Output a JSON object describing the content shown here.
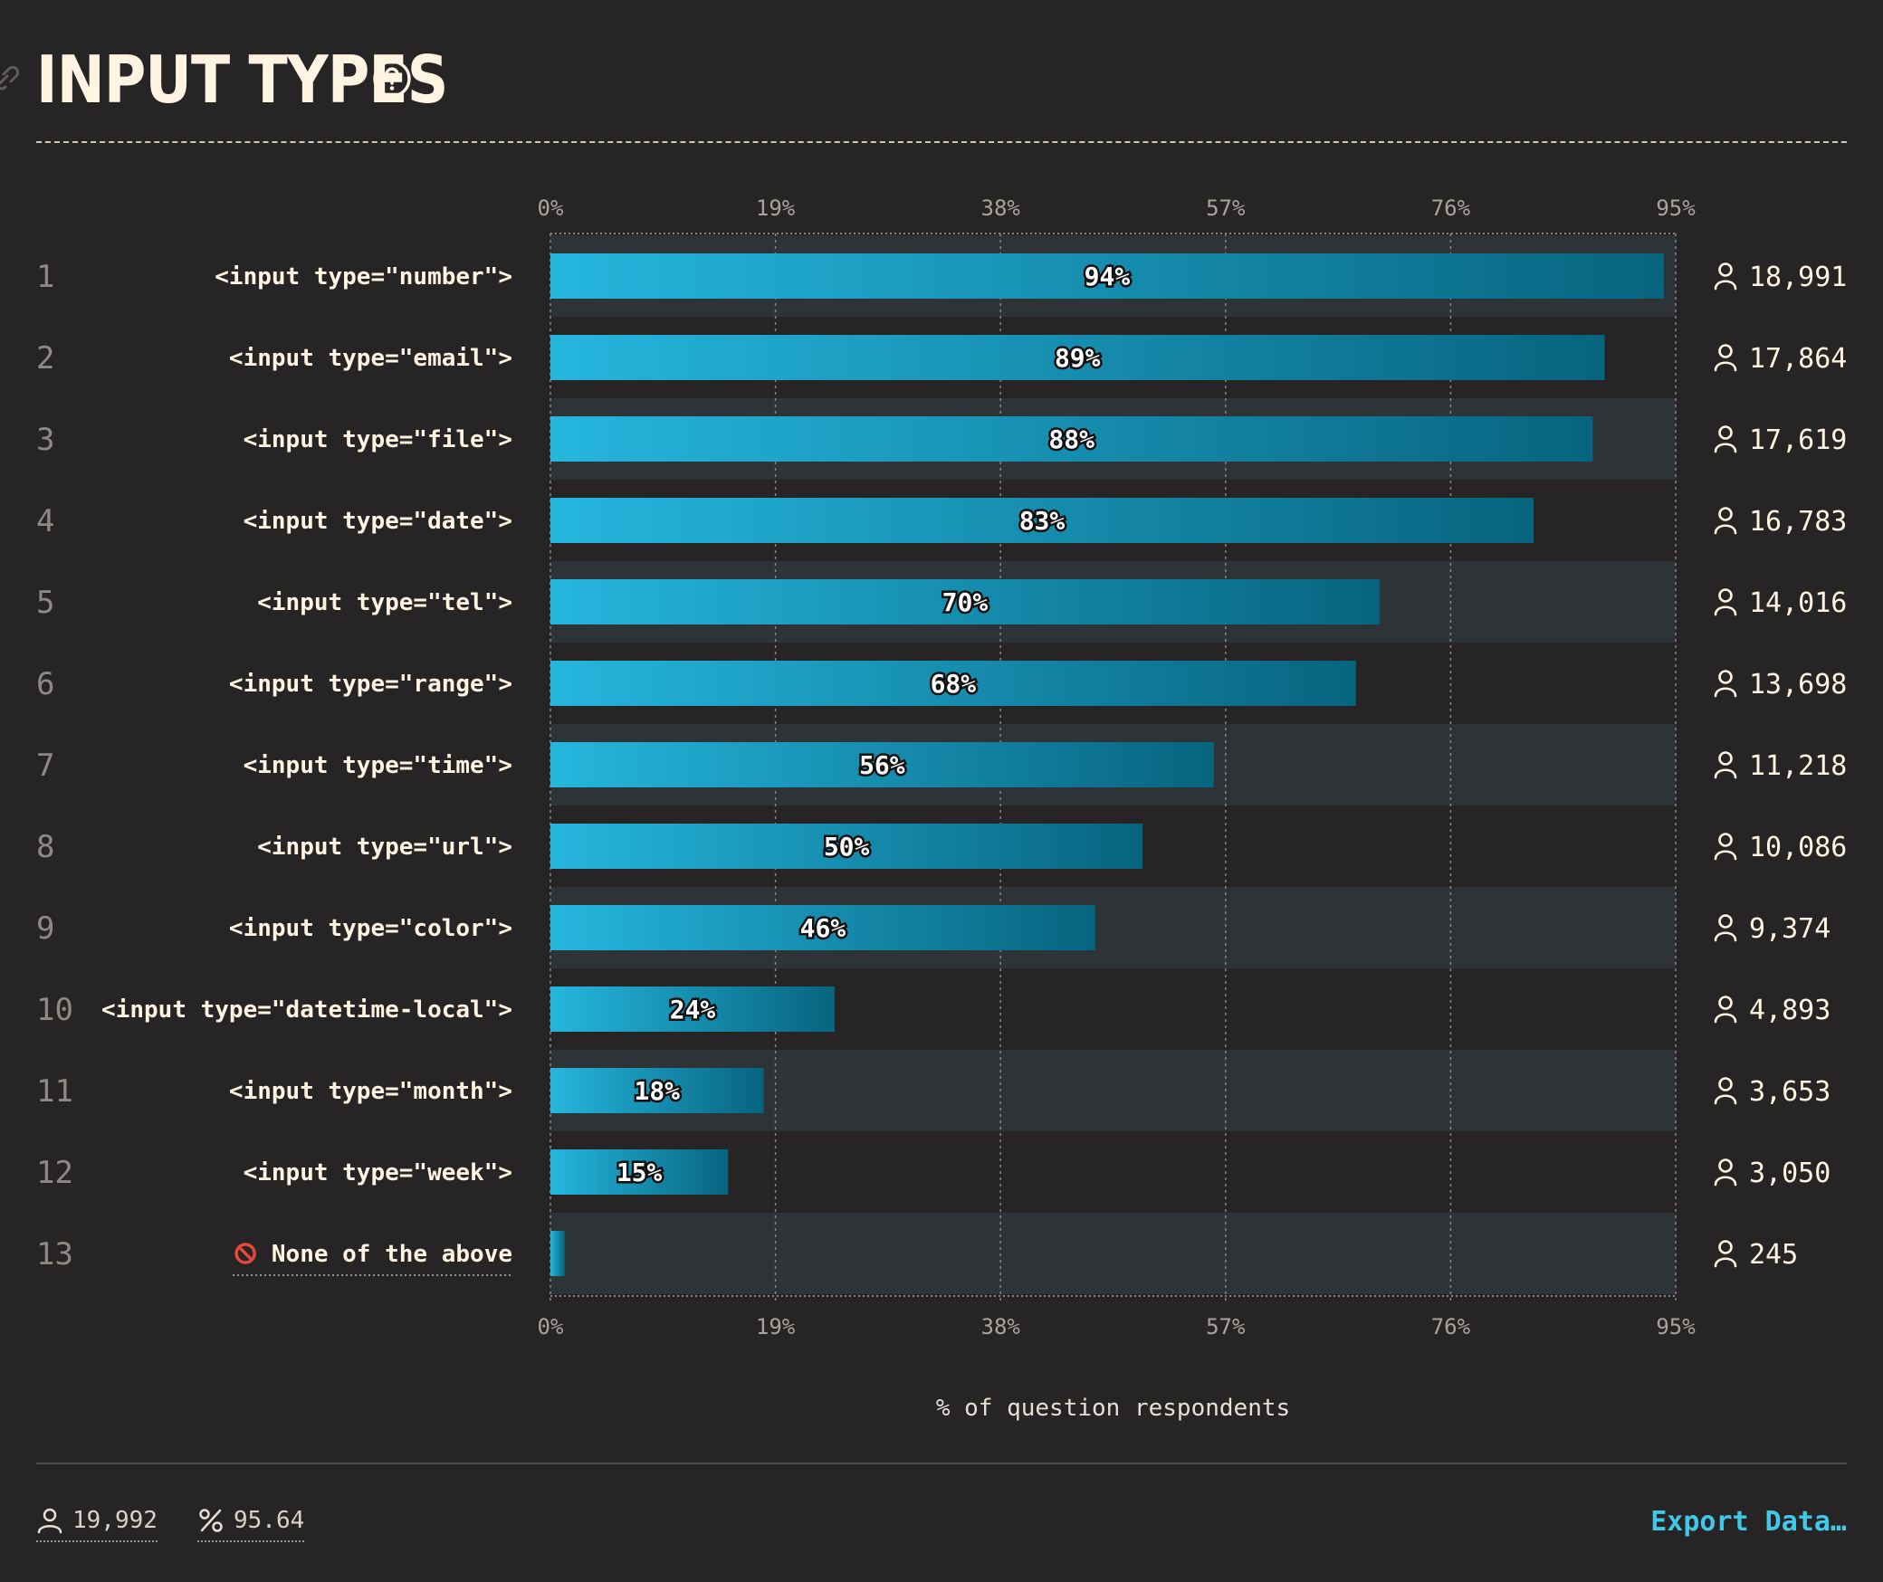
{
  "header": {
    "title": "INPUT TYPES",
    "link_icon": "link-icon",
    "help_icon": "help-circle-icon"
  },
  "colors": {
    "background": "#272425",
    "bar_start": "#25b6de",
    "bar_end": "#07647f",
    "row_alt_band": "#2d3337",
    "text": "#fff3e1",
    "accent": "#41c7e7"
  },
  "chart_data": {
    "type": "bar",
    "orientation": "horizontal",
    "xlabel": "% of question respondents",
    "xlim": [
      0,
      95
    ],
    "x_ticks": [
      "0%",
      "19%",
      "38%",
      "57%",
      "76%",
      "95%"
    ],
    "x_tick_values": [
      0,
      19,
      38,
      57,
      76,
      95
    ],
    "grid": true,
    "rows": [
      {
        "rank": "1",
        "label": "<input type=\"number\">",
        "value": 94,
        "value_label": "94%",
        "count": "18,991"
      },
      {
        "rank": "2",
        "label": "<input type=\"email\">",
        "value": 89,
        "value_label": "89%",
        "count": "17,864"
      },
      {
        "rank": "3",
        "label": "<input type=\"file\">",
        "value": 88,
        "value_label": "88%",
        "count": "17,619"
      },
      {
        "rank": "4",
        "label": "<input type=\"date\">",
        "value": 83,
        "value_label": "83%",
        "count": "16,783"
      },
      {
        "rank": "5",
        "label": "<input type=\"tel\">",
        "value": 70,
        "value_label": "70%",
        "count": "14,016"
      },
      {
        "rank": "6",
        "label": "<input type=\"range\">",
        "value": 68,
        "value_label": "68%",
        "count": "13,698"
      },
      {
        "rank": "7",
        "label": "<input type=\"time\">",
        "value": 56,
        "value_label": "56%",
        "count": "11,218"
      },
      {
        "rank": "8",
        "label": "<input type=\"url\">",
        "value": 50,
        "value_label": "50%",
        "count": "10,086"
      },
      {
        "rank": "9",
        "label": "<input type=\"color\">",
        "value": 46,
        "value_label": "46%",
        "count": "9,374"
      },
      {
        "rank": "10",
        "label": "<input type=\"datetime-local\">",
        "value": 24,
        "value_label": "24%",
        "count": "4,893"
      },
      {
        "rank": "11",
        "label": "<input type=\"month\">",
        "value": 18,
        "value_label": "18%",
        "count": "3,653"
      },
      {
        "rank": "12",
        "label": "<input type=\"week\">",
        "value": 15,
        "value_label": "15%",
        "count": "3,050"
      },
      {
        "rank": "13",
        "label": "None of the above",
        "value": 1.2,
        "value_label": "",
        "count": "245",
        "icon": "no-entry-icon"
      }
    ]
  },
  "footer": {
    "respondents_icon": "user-icon",
    "respondents": "19,992",
    "percent_icon": "percent-icon",
    "percent": "95.64",
    "export_label": "Export Data…"
  }
}
